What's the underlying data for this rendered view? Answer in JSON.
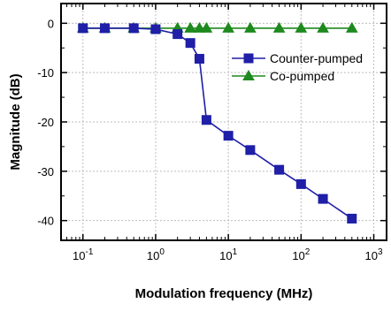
{
  "chart_data": {
    "type": "line",
    "xlabel": "Modulation frequency (MHz)",
    "ylabel": "Magnitude (dB)",
    "xscale": "log",
    "xlim": [
      0.05,
      1500
    ],
    "ylim": [
      -44,
      4
    ],
    "grid": true,
    "legend_position": "top-right",
    "x_ticks": [
      {
        "value": 0.1,
        "base": "10",
        "exp": "-1"
      },
      {
        "value": 1,
        "base": "10",
        "exp": "0"
      },
      {
        "value": 10,
        "base": "10",
        "exp": "1"
      },
      {
        "value": 100,
        "base": "10",
        "exp": "2"
      },
      {
        "value": 1000,
        "base": "10",
        "exp": "3"
      }
    ],
    "y_ticks": [
      {
        "value": 0,
        "label": "0"
      },
      {
        "value": -10,
        "label": "-10"
      },
      {
        "value": -20,
        "label": "-20"
      },
      {
        "value": -30,
        "label": "-30"
      },
      {
        "value": -40,
        "label": "-40"
      }
    ],
    "series": [
      {
        "name": "Counter-pumped",
        "color": "#1f1fa8",
        "marker": "square",
        "x": [
          0.1,
          0.2,
          0.5,
          1,
          2,
          3,
          4,
          5,
          10,
          20,
          50,
          100,
          200,
          500
        ],
        "y": [
          -1.0,
          -1.0,
          -1.0,
          -1.2,
          -2.2,
          -4.0,
          -7.2,
          -19.6,
          -22.8,
          -25.7,
          -29.7,
          -32.6,
          -35.6,
          -39.6
        ]
      },
      {
        "name": "Co-pumped",
        "color": "#1e8a1e",
        "marker": "triangle",
        "x": [
          0.1,
          0.2,
          0.5,
          1,
          2,
          3,
          4,
          5,
          10,
          20,
          50,
          100,
          200,
          500
        ],
        "y": [
          -1.0,
          -1.0,
          -1.0,
          -1.0,
          -1.0,
          -1.0,
          -1.0,
          -1.0,
          -1.0,
          -1.0,
          -1.0,
          -1.0,
          -1.0,
          -1.0
        ]
      }
    ]
  }
}
